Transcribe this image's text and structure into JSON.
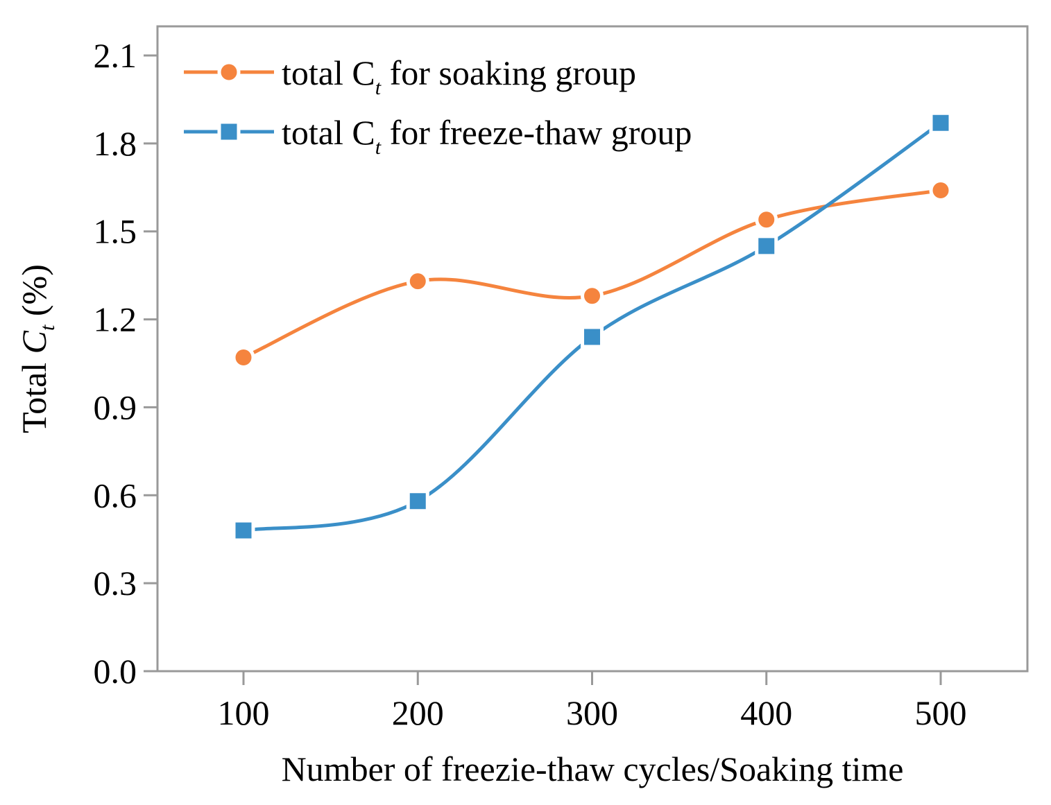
{
  "chart_data": {
    "type": "line",
    "title": "",
    "xlabel": "Number of freezie-thaw cycles/Soaking time",
    "ylabel": {
      "prefix": "Total ",
      "var": "C",
      "sub": "t",
      "suffix": " (%)"
    },
    "x": [
      100,
      200,
      300,
      400,
      500
    ],
    "xlim": [
      50,
      550
    ],
    "ylim": [
      0,
      2.1
    ],
    "xticks": [
      "100",
      "200",
      "300",
      "400",
      "500"
    ],
    "yticks": [
      "0.0",
      "0.3",
      "0.6",
      "0.9",
      "1.2",
      "1.5",
      "1.8",
      "2.1"
    ],
    "grid": false,
    "legend_position": "top-left",
    "smoothed": true,
    "series": [
      {
        "name": {
          "prefix": "total C",
          "sub": "t",
          "suffix": " for soaking group"
        },
        "marker": "circle",
        "color": "#f5843e",
        "values": [
          1.07,
          1.33,
          1.28,
          1.54,
          1.64
        ]
      },
      {
        "name": {
          "prefix": "total C",
          "sub": "t",
          "suffix": " for freeze-thaw group"
        },
        "marker": "square",
        "color": "#3a8fc8",
        "values": [
          0.48,
          0.58,
          1.14,
          1.45,
          1.87
        ]
      }
    ]
  }
}
